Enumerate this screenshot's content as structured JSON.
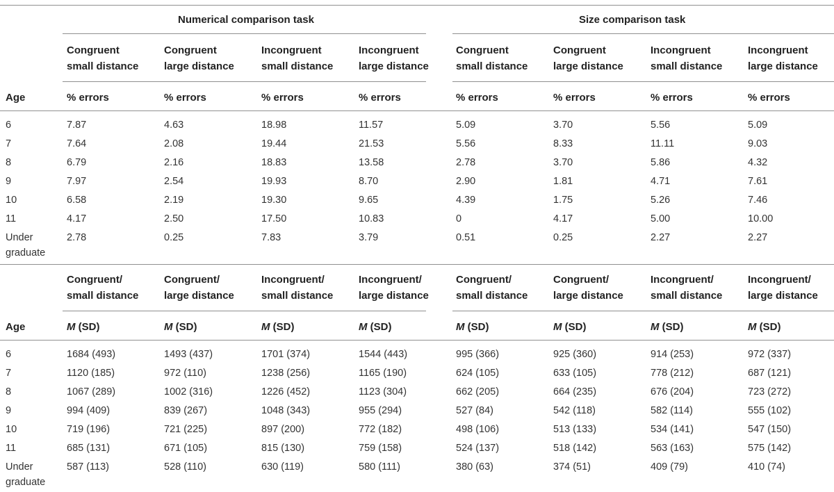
{
  "tasks": {
    "numerical": "Numerical comparison task",
    "size": "Size comparison task"
  },
  "section1": {
    "conditions": [
      [
        "Congruent",
        "small distance"
      ],
      [
        "Congruent",
        "large distance"
      ],
      [
        "Incongruent",
        "small distance"
      ],
      [
        "Incongruent",
        "large distance"
      ],
      [
        "Congruent",
        "small distance"
      ],
      [
        "Congruent",
        "large distance"
      ],
      [
        "Incongruent",
        "small distance"
      ],
      [
        "Incongruent",
        "large distance"
      ]
    ],
    "age_label": "Age",
    "unit_label": "% errors",
    "rows": [
      {
        "age": [
          "6"
        ],
        "values": [
          "7.87",
          "4.63",
          "18.98",
          "11.57",
          "5.09",
          "3.70",
          "5.56",
          "5.09"
        ]
      },
      {
        "age": [
          "7"
        ],
        "values": [
          "7.64",
          "2.08",
          "19.44",
          "21.53",
          "5.56",
          "8.33",
          "11.11",
          "9.03"
        ]
      },
      {
        "age": [
          "8"
        ],
        "values": [
          "6.79",
          "2.16",
          "18.83",
          "13.58",
          "2.78",
          "3.70",
          "5.86",
          "4.32"
        ]
      },
      {
        "age": [
          "9"
        ],
        "values": [
          "7.97",
          "2.54",
          "19.93",
          "8.70",
          "2.90",
          "1.81",
          "4.71",
          "7.61"
        ]
      },
      {
        "age": [
          "10"
        ],
        "values": [
          "6.58",
          "2.19",
          "19.30",
          "9.65",
          "4.39",
          "1.75",
          "5.26",
          "7.46"
        ]
      },
      {
        "age": [
          "11"
        ],
        "values": [
          "4.17",
          "2.50",
          "17.50",
          "10.83",
          "0",
          "4.17",
          "5.00",
          "10.00"
        ]
      },
      {
        "age": [
          "Under",
          "graduate"
        ],
        "values": [
          "2.78",
          "0.25",
          "7.83",
          "3.79",
          "0.51",
          "0.25",
          "2.27",
          "2.27"
        ]
      }
    ]
  },
  "section2": {
    "conditions": [
      [
        "Congruent/",
        "small distance"
      ],
      [
        "Congruent/",
        "large distance"
      ],
      [
        "Incongruent/",
        "small distance"
      ],
      [
        "Incongruent/",
        "large distance"
      ],
      [
        "Congruent/",
        "small distance"
      ],
      [
        "Congruent/",
        "large distance"
      ],
      [
        "Incongruent/",
        "small distance"
      ],
      [
        "Incongruent/",
        "large distance"
      ]
    ],
    "age_label": "Age",
    "unit_label_m": "M",
    "unit_label_sd": " (SD)",
    "rows": [
      {
        "age": [
          "6"
        ],
        "values": [
          "1684 (493)",
          "1493 (437)",
          "1701 (374)",
          "1544 (443)",
          "995 (366)",
          "925 (360)",
          "914 (253)",
          "972 (337)"
        ]
      },
      {
        "age": [
          "7"
        ],
        "values": [
          "1120 (185)",
          "972 (110)",
          "1238 (256)",
          "1165 (190)",
          "624 (105)",
          "633 (105)",
          "778 (212)",
          "687 (121)"
        ]
      },
      {
        "age": [
          "8"
        ],
        "values": [
          "1067 (289)",
          "1002 (316)",
          "1226 (452)",
          "1123 (304)",
          "662 (205)",
          "664 (235)",
          "676 (204)",
          "723 (272)"
        ]
      },
      {
        "age": [
          "9"
        ],
        "values": [
          "994 (409)",
          "839 (267)",
          "1048 (343)",
          "955 (294)",
          "527 (84)",
          "542 (118)",
          "582 (114)",
          "555 (102)"
        ]
      },
      {
        "age": [
          "10"
        ],
        "values": [
          "719 (196)",
          "721 (225)",
          "897 (200)",
          "772 (182)",
          "498 (106)",
          "513 (133)",
          "534 (141)",
          "547 (150)"
        ]
      },
      {
        "age": [
          "11"
        ],
        "values": [
          "685 (131)",
          "671 (105)",
          "815 (130)",
          "759 (158)",
          "524 (137)",
          "518 (142)",
          "563 (163)",
          "575 (142)"
        ]
      },
      {
        "age": [
          "Under",
          "graduate"
        ],
        "values": [
          "587 (113)",
          "528 (110)",
          "630 (119)",
          "580 (111)",
          "380 (63)",
          "374 (51)",
          "409 (79)",
          "410 (74)"
        ]
      }
    ]
  }
}
